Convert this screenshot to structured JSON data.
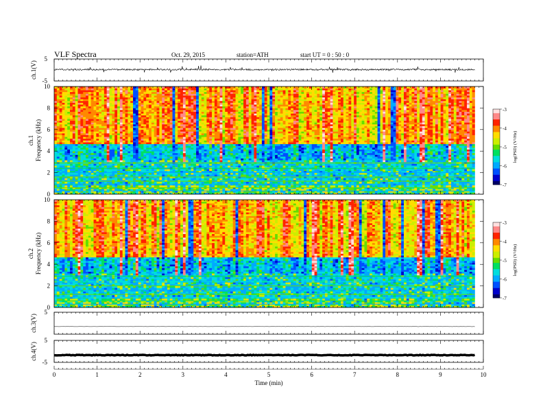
{
  "header": {
    "title": "VLF  Spectra",
    "date": "Oct. 29, 2015",
    "station": "station=ATH",
    "start": "start  UT =   0 : 50 : 0"
  },
  "chart_data": [
    {
      "type": "line",
      "id": "ch1-waveform",
      "ylabel": "ch.1(V)",
      "ylim": [
        -5,
        5
      ],
      "y_ticks": [
        "5",
        "-5"
      ],
      "description_values": {
        "baseline": 0.2,
        "noise_amplitude": 0.35,
        "spike_amplitude": 1.6
      }
    },
    {
      "type": "heatmap",
      "id": "ch1-spectrogram",
      "ylabel_line1": "ch.1",
      "ylabel_line2": "Frequency  (kHz)",
      "ylim": [
        0,
        10
      ],
      "y_ticks": [
        "0",
        "2",
        "4",
        "6",
        "8",
        "10"
      ],
      "colorbar_label": "log(PSD) (V²/Hz)",
      "colorbar_ticks": [
        "-3",
        "-4",
        "-5",
        "-6",
        "-7"
      ],
      "colorbar_range": [
        -7,
        -3
      ]
    },
    {
      "type": "heatmap",
      "id": "ch2-spectrogram",
      "ylabel_line1": "ch.2",
      "ylabel_line2": "Frequency  (kHz)",
      "ylim": [
        0,
        10
      ],
      "y_ticks": [
        "0",
        "2",
        "4",
        "6",
        "8",
        "10"
      ],
      "colorbar_label": "log(PSD) (V²/Hz)",
      "colorbar_ticks": [
        "-3",
        "-4",
        "-5",
        "-6",
        "-7"
      ],
      "colorbar_range": [
        -7,
        -3
      ]
    },
    {
      "type": "line",
      "id": "ch3-waveform",
      "ylabel": "ch.3(V)",
      "ylim": [
        -5,
        5
      ],
      "y_ticks": [
        "5"
      ],
      "description_values": {
        "baseline": -1.5,
        "noise_amplitude": 0.05
      }
    },
    {
      "type": "line",
      "id": "ch4-waveform",
      "ylabel": "ch.4(V)",
      "ylim": [
        -5,
        5
      ],
      "y_ticks": [
        "5",
        "-5"
      ],
      "description_values": {
        "baseline": -1.7,
        "noise_amplitude": 0.15
      }
    }
  ],
  "x_axis": {
    "label": "Time  (min)",
    "xlim": [
      0,
      10
    ],
    "ticks": [
      "0",
      "1",
      "2",
      "3",
      "4",
      "5",
      "6",
      "7",
      "8",
      "9",
      "10"
    ],
    "data_end": 9.8
  },
  "colors": {
    "colormap": [
      "#000066",
      "#0000cc",
      "#0050ff",
      "#00aaff",
      "#00dddd",
      "#00e060",
      "#66dd00",
      "#ccee00",
      "#ffdd00",
      "#ff8800",
      "#ff2200",
      "#ff8888",
      "#ffe0e0"
    ]
  }
}
